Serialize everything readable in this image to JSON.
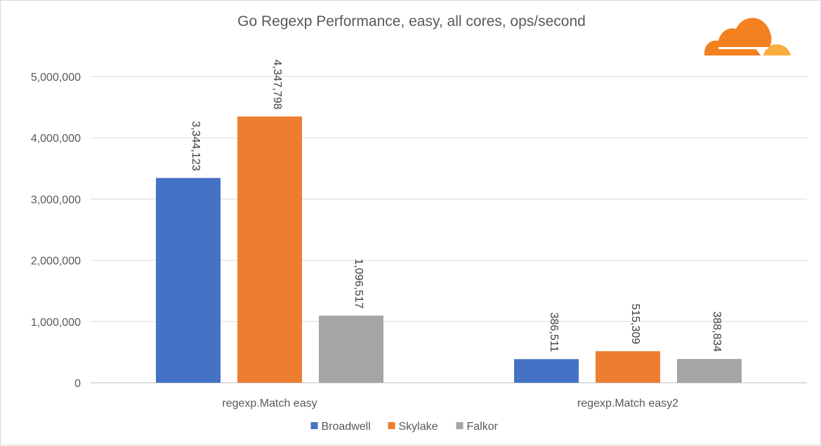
{
  "chart_data": {
    "type": "bar",
    "title": "Go Regexp Performance, easy, all cores, ops/second",
    "xlabel": "",
    "ylabel": "",
    "categories": [
      "regexp.Match easy",
      "regexp.Match easy2"
    ],
    "series": [
      {
        "name": "Broadwell",
        "values": [
          3344123,
          386511
        ],
        "color": "#4472C4",
        "labels": [
          "3,344,123",
          "386,511"
        ]
      },
      {
        "name": "Skylake",
        "values": [
          4347798,
          515309
        ],
        "color": "#ED7D31",
        "labels": [
          "4,347,798",
          "515,309"
        ]
      },
      {
        "name": "Falkor",
        "values": [
          1096517,
          388834
        ],
        "color": "#A5A5A5",
        "labels": [
          "1,096,517",
          "388,834"
        ]
      }
    ],
    "ylim": [
      0,
      5000000
    ],
    "yticks": [
      0,
      1000000,
      2000000,
      3000000,
      4000000,
      5000000
    ],
    "ytick_labels": [
      "0",
      "1,000,000",
      "2,000,000",
      "3,000,000",
      "4,000,000",
      "5,000,000"
    ],
    "grid": true,
    "legend_position": "bottom"
  },
  "logo": {
    "name": "cloudflare-logo",
    "colors": {
      "primary": "#F48120",
      "secondary": "#FAAD3F"
    }
  }
}
